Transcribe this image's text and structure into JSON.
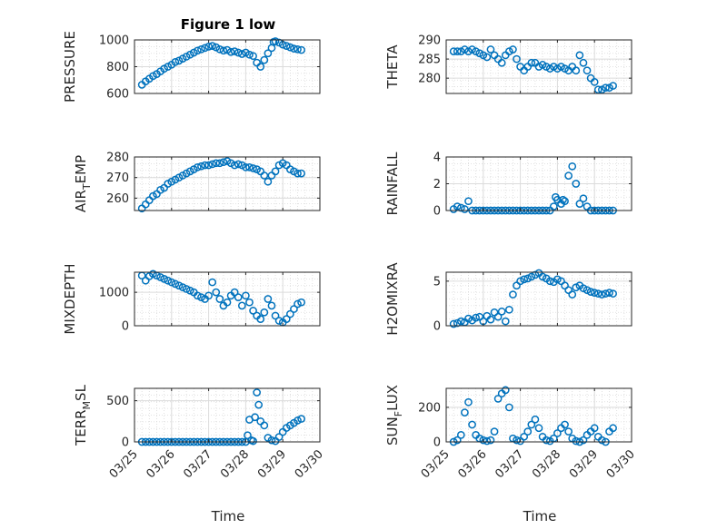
{
  "figure": {
    "title": "Figure 1 low",
    "xlabel": "Time"
  },
  "x_ticks": [
    "03/25",
    "03/26",
    "03/27",
    "03/28",
    "03/29",
    "03/30"
  ],
  "marker_color": "#0072BD",
  "chart_data": [
    {
      "type": "scatter",
      "ylabel": "PRESSURE",
      "ylim": [
        600,
        1000
      ],
      "yticks": [
        "600",
        "800",
        "1000"
      ],
      "ytick_values": [
        600,
        800,
        1000
      ],
      "grid": true,
      "series": [
        {
          "x": [
            0.2,
            0.3,
            0.4,
            0.5,
            0.6,
            0.7,
            0.8,
            0.9,
            1.0,
            1.1,
            1.2,
            1.3,
            1.4,
            1.5,
            1.6,
            1.7,
            1.8,
            1.9,
            2.0,
            2.1,
            2.2,
            2.3,
            2.4,
            2.5,
            2.6,
            2.7,
            2.8,
            2.9,
            3.0,
            3.1,
            3.2,
            3.3,
            3.4,
            3.5,
            3.6,
            3.7,
            3.75,
            3.8,
            3.9,
            4.0,
            4.1,
            4.2,
            4.3,
            4.4,
            4.5
          ],
          "y": [
            665,
            690,
            710,
            730,
            745,
            765,
            785,
            800,
            815,
            835,
            845,
            860,
            875,
            890,
            905,
            920,
            930,
            940,
            950,
            955,
            945,
            930,
            920,
            925,
            910,
            915,
            905,
            895,
            905,
            890,
            880,
            830,
            800,
            850,
            900,
            940,
            985,
            990,
            980,
            965,
            955,
            945,
            935,
            930,
            925
          ]
        }
      ]
    },
    {
      "type": "scatter",
      "ylabel": "THETA",
      "ylim": [
        276,
        290
      ],
      "yticks": [
        "280",
        "285",
        "290"
      ],
      "ytick_values": [
        280,
        285,
        290
      ],
      "grid": true,
      "series": [
        {
          "x": [
            0.2,
            0.3,
            0.4,
            0.5,
            0.6,
            0.7,
            0.8,
            0.9,
            1.0,
            1.1,
            1.2,
            1.3,
            1.4,
            1.5,
            1.6,
            1.7,
            1.8,
            1.9,
            2.0,
            2.1,
            2.2,
            2.3,
            2.4,
            2.5,
            2.6,
            2.7,
            2.8,
            2.9,
            3.0,
            3.1,
            3.2,
            3.3,
            3.4,
            3.5,
            3.6,
            3.7,
            3.8,
            3.9,
            4.0,
            4.1,
            4.2,
            4.3,
            4.4,
            4.5
          ],
          "y": [
            287,
            287,
            287,
            287.5,
            287,
            287.5,
            287,
            286.5,
            286,
            285.5,
            287.5,
            286,
            285,
            284,
            286,
            287,
            287.5,
            285,
            283,
            282,
            283,
            284,
            284,
            283,
            283.5,
            283,
            282.5,
            283,
            282.5,
            283,
            282.5,
            282,
            283,
            282,
            286,
            284,
            282,
            280,
            279,
            277,
            277,
            277.5,
            277.5,
            278
          ]
        }
      ]
    },
    {
      "type": "scatter",
      "ylabel": "AIR_TEMP",
      "ylim": [
        254,
        280
      ],
      "yticks": [
        "260",
        "270",
        "280"
      ],
      "ytick_values": [
        260,
        270,
        280
      ],
      "grid": true,
      "series": [
        {
          "x": [
            0.2,
            0.3,
            0.4,
            0.5,
            0.6,
            0.7,
            0.8,
            0.9,
            1.0,
            1.1,
            1.2,
            1.3,
            1.4,
            1.5,
            1.6,
            1.7,
            1.8,
            1.9,
            2.0,
            2.1,
            2.2,
            2.3,
            2.4,
            2.5,
            2.6,
            2.7,
            2.8,
            2.9,
            3.0,
            3.1,
            3.2,
            3.3,
            3.4,
            3.5,
            3.6,
            3.7,
            3.8,
            3.9,
            4.0,
            4.1,
            4.2,
            4.3,
            4.4,
            4.5
          ],
          "y": [
            255,
            257,
            259,
            261,
            262,
            264,
            265,
            267,
            268,
            269,
            270,
            271,
            272,
            273,
            274,
            275,
            275.5,
            276,
            276,
            276.5,
            277,
            277,
            277.5,
            278,
            277,
            276,
            276.5,
            276,
            275,
            275,
            274.5,
            274,
            273,
            271,
            268,
            271,
            273,
            276,
            277,
            276,
            274,
            273,
            272,
            272
          ]
        }
      ]
    },
    {
      "type": "scatter",
      "ylabel": "RAINFALL",
      "ylim": [
        0,
        4
      ],
      "yticks": [
        "0",
        "2",
        "4"
      ],
      "ytick_values": [
        0,
        2,
        4
      ],
      "grid": true,
      "series": [
        {
          "x": [
            0.2,
            0.3,
            0.4,
            0.5,
            0.6,
            0.7,
            0.8,
            0.9,
            1.0,
            1.1,
            1.2,
            1.3,
            1.4,
            1.5,
            1.6,
            1.7,
            1.8,
            1.9,
            2.0,
            2.1,
            2.2,
            2.3,
            2.4,
            2.5,
            2.6,
            2.7,
            2.8,
            2.9,
            2.95,
            3.0,
            3.1,
            3.15,
            3.2,
            3.3,
            3.4,
            3.5,
            3.6,
            3.7,
            3.8,
            3.9,
            4.0,
            4.1,
            4.2,
            4.3,
            4.4,
            4.5
          ],
          "y": [
            0.1,
            0.3,
            0.2,
            0.1,
            0.7,
            0,
            0,
            0,
            0,
            0,
            0,
            0,
            0,
            0,
            0,
            0,
            0,
            0,
            0,
            0,
            0,
            0,
            0,
            0,
            0,
            0,
            0,
            0.3,
            1.0,
            0.8,
            0.5,
            0.8,
            0.7,
            2.6,
            3.3,
            2.0,
            0.5,
            0.9,
            0.3,
            0,
            0,
            0,
            0,
            0,
            0,
            0
          ]
        }
      ]
    },
    {
      "type": "scatter",
      "ylabel": "MIXDEPTH",
      "ylim": [
        0,
        1600
      ],
      "yticks": [
        "0",
        "1000"
      ],
      "ytick_values": [
        0,
        1000
      ],
      "grid": true,
      "series": [
        {
          "x": [
            0.2,
            0.3,
            0.4,
            0.5,
            0.6,
            0.7,
            0.8,
            0.9,
            1.0,
            1.1,
            1.2,
            1.3,
            1.4,
            1.5,
            1.6,
            1.7,
            1.8,
            1.9,
            2.0,
            2.1,
            2.2,
            2.3,
            2.4,
            2.5,
            2.6,
            2.7,
            2.8,
            2.9,
            3.0,
            3.1,
            3.2,
            3.3,
            3.4,
            3.5,
            3.6,
            3.7,
            3.8,
            3.9,
            4.0,
            4.1,
            4.2,
            4.3,
            4.4,
            4.5
          ],
          "y": [
            1500,
            1350,
            1480,
            1550,
            1500,
            1450,
            1400,
            1350,
            1300,
            1250,
            1200,
            1150,
            1100,
            1050,
            1000,
            900,
            850,
            800,
            900,
            1300,
            1000,
            800,
            600,
            700,
            900,
            1000,
            850,
            600,
            900,
            700,
            450,
            300,
            200,
            400,
            800,
            600,
            300,
            150,
            100,
            200,
            350,
            500,
            650,
            700
          ]
        }
      ]
    },
    {
      "type": "scatter",
      "ylabel": "H2OMIXRA",
      "ylim": [
        0,
        6
      ],
      "yticks": [
        "0",
        "5"
      ],
      "ytick_values": [
        0,
        5
      ],
      "grid": true,
      "series": [
        {
          "x": [
            0.2,
            0.3,
            0.4,
            0.5,
            0.6,
            0.7,
            0.8,
            0.9,
            1.0,
            1.1,
            1.2,
            1.3,
            1.4,
            1.5,
            1.6,
            1.7,
            1.8,
            1.9,
            2.0,
            2.1,
            2.2,
            2.3,
            2.4,
            2.5,
            2.6,
            2.7,
            2.8,
            2.9,
            3.0,
            3.1,
            3.2,
            3.3,
            3.4,
            3.5,
            3.6,
            3.7,
            3.8,
            3.9,
            4.0,
            4.1,
            4.2,
            4.3,
            4.4,
            4.5
          ],
          "y": [
            0.2,
            0.3,
            0.5,
            0.4,
            0.8,
            0.6,
            0.9,
            1.0,
            0.5,
            1.1,
            0.7,
            1.5,
            1.0,
            1.6,
            0.5,
            1.8,
            3.5,
            4.5,
            5.0,
            5.2,
            5.3,
            5.5,
            5.7,
            5.9,
            5.5,
            5.3,
            5.0,
            4.9,
            5.2,
            5.0,
            4.5,
            4.0,
            3.5,
            4.3,
            4.5,
            4.2,
            4.0,
            3.8,
            3.7,
            3.6,
            3.5,
            3.6,
            3.7,
            3.6
          ]
        }
      ]
    },
    {
      "type": "scatter",
      "ylabel": "TERR_MSL",
      "ylim": [
        0,
        650
      ],
      "yticks": [
        "0",
        "500"
      ],
      "ytick_values": [
        0,
        500
      ],
      "grid": true,
      "series": [
        {
          "x": [
            0.2,
            0.3,
            0.4,
            0.5,
            0.6,
            0.7,
            0.8,
            0.9,
            1.0,
            1.1,
            1.2,
            1.3,
            1.4,
            1.5,
            1.6,
            1.7,
            1.8,
            1.9,
            2.0,
            2.1,
            2.2,
            2.3,
            2.4,
            2.5,
            2.6,
            2.7,
            2.8,
            2.9,
            3.0,
            3.05,
            3.1,
            3.15,
            3.2,
            3.25,
            3.3,
            3.35,
            3.4,
            3.5,
            3.6,
            3.7,
            3.8,
            3.9,
            4.0,
            4.1,
            4.2,
            4.3,
            4.4,
            4.5
          ],
          "y": [
            0,
            0,
            0,
            0,
            0,
            0,
            0,
            0,
            0,
            0,
            0,
            0,
            0,
            0,
            0,
            0,
            0,
            0,
            0,
            0,
            0,
            0,
            0,
            0,
            0,
            0,
            0,
            0,
            0,
            80,
            270,
            20,
            10,
            300,
            600,
            450,
            250,
            200,
            50,
            20,
            10,
            60,
            120,
            170,
            200,
            230,
            260,
            280
          ]
        }
      ]
    },
    {
      "type": "scatter",
      "ylabel": "SUN_FLUX",
      "ylim": [
        0,
        310
      ],
      "yticks": [
        "0",
        "200"
      ],
      "ytick_values": [
        0,
        200
      ],
      "grid": true,
      "series": [
        {
          "x": [
            0.2,
            0.3,
            0.4,
            0.5,
            0.6,
            0.7,
            0.8,
            0.9,
            1.0,
            1.1,
            1.2,
            1.3,
            1.4,
            1.5,
            1.6,
            1.7,
            1.8,
            1.9,
            2.0,
            2.1,
            2.2,
            2.3,
            2.4,
            2.5,
            2.6,
            2.7,
            2.8,
            2.9,
            3.0,
            3.1,
            3.2,
            3.3,
            3.4,
            3.5,
            3.6,
            3.7,
            3.8,
            3.9,
            4.0,
            4.1,
            4.2,
            4.3,
            4.4,
            4.5
          ],
          "y": [
            0,
            10,
            40,
            170,
            230,
            100,
            40,
            20,
            10,
            5,
            10,
            60,
            250,
            280,
            300,
            200,
            20,
            10,
            5,
            30,
            60,
            100,
            130,
            80,
            30,
            10,
            5,
            20,
            50,
            80,
            100,
            60,
            20,
            5,
            0,
            10,
            40,
            60,
            80,
            30,
            10,
            0,
            60,
            80
          ]
        }
      ]
    }
  ]
}
